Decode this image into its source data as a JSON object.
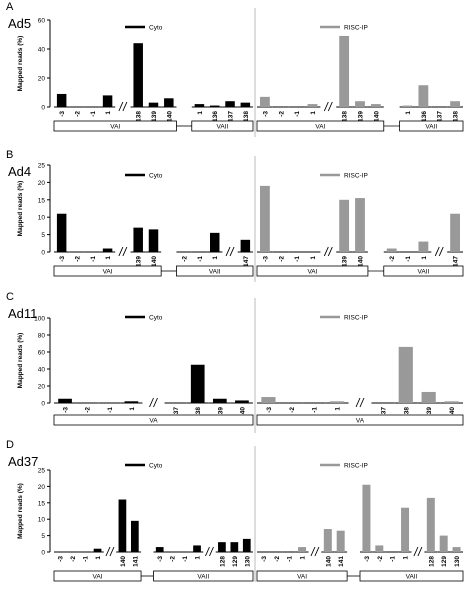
{
  "chart_data": [
    {
      "type": "bar",
      "panel_label": "A",
      "virus": "Ad5",
      "ylabel": "Mapped reads (%)",
      "ylim": [
        0,
        60
      ],
      "yticks": [
        0,
        20,
        40,
        60
      ],
      "legend": [
        "Cyto",
        "RISC-IP"
      ],
      "halves": [
        {
          "name": "Cyto",
          "color": "#000000",
          "groups": [
            {
              "label": "VAI",
              "categories": [
                "-3",
                "-2",
                "-1",
                "1",
                "138",
                "139",
                "140"
              ],
              "values": [
                9,
                0,
                0,
                8,
                44,
                3,
                6
              ],
              "break_after": 3
            },
            {
              "label": "VAII",
              "categories": [
                "1",
                "136",
                "137",
                "138"
              ],
              "values": [
                2,
                1,
                4,
                3
              ],
              "break_after": 0
            }
          ]
        },
        {
          "name": "RISC-IP",
          "color": "#999999",
          "groups": [
            {
              "label": "VAI",
              "categories": [
                "-3",
                "-2",
                "-1",
                "1",
                "138",
                "139",
                "140"
              ],
              "values": [
                7,
                0,
                0,
                2,
                49,
                4,
                2
              ],
              "break_after": 3
            },
            {
              "label": "VAII",
              "categories": [
                "1",
                "136",
                "137",
                "138"
              ],
              "values": [
                1,
                15,
                0,
                4
              ],
              "break_after": 0
            }
          ]
        }
      ]
    },
    {
      "type": "bar",
      "panel_label": "B",
      "virus": "Ad4",
      "ylabel": "Mapped reads (%)",
      "ylim": [
        0,
        25
      ],
      "yticks": [
        0,
        5,
        10,
        15,
        20,
        25
      ],
      "legend": [
        "Cyto",
        "RISC-IP"
      ],
      "halves": [
        {
          "name": "Cyto",
          "color": "#000000",
          "groups": [
            {
              "label": "VAI",
              "categories": [
                "-3",
                "-2",
                "-1",
                "1",
                "139",
                "140"
              ],
              "values": [
                11,
                0,
                0,
                1,
                7,
                6.5
              ],
              "break_after": 3
            },
            {
              "label": "VAII",
              "categories": [
                "-2",
                "-1",
                "1",
                "147"
              ],
              "values": [
                0,
                0,
                5.5,
                3.5
              ],
              "break_after": 2
            }
          ]
        },
        {
          "name": "RISC-IP",
          "color": "#999999",
          "groups": [
            {
              "label": "VAI",
              "categories": [
                "-3",
                "-2",
                "-1",
                "1",
                "139",
                "140"
              ],
              "values": [
                19,
                0,
                0,
                0,
                15,
                15.5
              ],
              "break_after": 3
            },
            {
              "label": "VAII",
              "categories": [
                "-2",
                "-1",
                "1",
                "147"
              ],
              "values": [
                1,
                0,
                3,
                11
              ],
              "break_after": 2
            }
          ]
        }
      ]
    },
    {
      "type": "bar",
      "panel_label": "C",
      "virus": "Ad11",
      "ylabel": "Mapped reads (%)",
      "ylim": [
        0,
        100
      ],
      "yticks": [
        0,
        20,
        40,
        60,
        80,
        100
      ],
      "legend": [
        "Cyto",
        "RISC-IP"
      ],
      "halves": [
        {
          "name": "Cyto",
          "color": "#000000",
          "groups": [
            {
              "label": "VA",
              "categories": [
                "-3",
                "-2",
                "-1",
                "1",
                "137",
                "138",
                "139",
                "140"
              ],
              "values": [
                5,
                0,
                0,
                2,
                0,
                45,
                5,
                3
              ],
              "break_after": 3
            }
          ]
        },
        {
          "name": "RISC-IP",
          "color": "#999999",
          "groups": [
            {
              "label": "VA",
              "categories": [
                "-3",
                "-2",
                "-1",
                "1",
                "137",
                "138",
                "139",
                "140"
              ],
              "values": [
                7,
                0,
                0,
                2,
                0,
                66,
                13,
                2
              ],
              "break_after": 3
            }
          ]
        }
      ]
    },
    {
      "type": "bar",
      "panel_label": "D",
      "virus": "Ad37",
      "ylabel": "Mapped reads (%)",
      "ylim": [
        0,
        25
      ],
      "yticks": [
        0,
        5,
        10,
        15,
        20,
        25
      ],
      "legend": [
        "Cyto",
        "RISC-IP"
      ],
      "halves": [
        {
          "name": "Cyto",
          "color": "#000000",
          "groups": [
            {
              "label": "VAI",
              "categories": [
                "-3",
                "-2",
                "-1",
                "1",
                "140",
                "141"
              ],
              "values": [
                0,
                0,
                0,
                1,
                16,
                9.5
              ],
              "break_after": 3
            },
            {
              "label": "VAII",
              "categories": [
                "-3",
                "-2",
                "-1",
                "1",
                "128",
                "129",
                "130"
              ],
              "values": [
                1.5,
                0,
                0,
                2,
                3,
                3,
                4
              ],
              "break_after": 3
            }
          ]
        },
        {
          "name": "RISC-IP",
          "color": "#999999",
          "groups": [
            {
              "label": "VAI",
              "categories": [
                "-3",
                "-2",
                "-1",
                "1",
                "140",
                "141"
              ],
              "values": [
                0,
                0,
                0,
                1.5,
                7,
                6.5
              ],
              "break_after": 3
            },
            {
              "label": "VAII",
              "categories": [
                "-3",
                "-2",
                "-1",
                "1",
                "128",
                "129",
                "130"
              ],
              "values": [
                20.5,
                2,
                0,
                13.5,
                16.5,
                5,
                1.5
              ],
              "break_after": 3
            }
          ]
        }
      ]
    }
  ]
}
